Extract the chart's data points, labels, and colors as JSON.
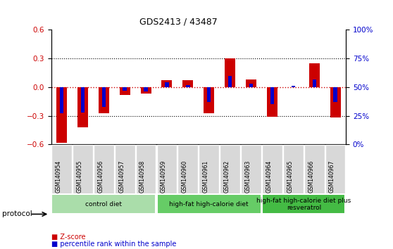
{
  "title": "GDS2413 / 43487",
  "samples": [
    "GSM140954",
    "GSM140955",
    "GSM140956",
    "GSM140957",
    "GSM140958",
    "GSM140959",
    "GSM140960",
    "GSM140961",
    "GSM140962",
    "GSM140963",
    "GSM140964",
    "GSM140965",
    "GSM140966",
    "GSM140967"
  ],
  "zscore": [
    -0.58,
    -0.42,
    -0.27,
    -0.08,
    -0.07,
    0.07,
    0.07,
    -0.27,
    0.3,
    0.08,
    -0.31,
    0.0,
    0.25,
    -0.32
  ],
  "percentile": [
    0.27,
    0.28,
    0.33,
    0.47,
    0.46,
    0.54,
    0.52,
    0.37,
    0.6,
    0.53,
    0.35,
    0.51,
    0.57,
    0.37
  ],
  "zscore_color": "#cc0000",
  "percentile_color": "#0000cc",
  "ylim_left": [
    -0.6,
    0.6
  ],
  "ylim_right": [
    0,
    100
  ],
  "yticks_left": [
    -0.6,
    -0.3,
    0.0,
    0.3,
    0.6
  ],
  "yticks_right": [
    0,
    25,
    50,
    75,
    100
  ],
  "ytick_labels_right": [
    "0%",
    "25%",
    "50%",
    "75%",
    "100%"
  ],
  "groups": [
    {
      "label": "control diet",
      "start": 0,
      "end": 4,
      "color": "#aaddaa"
    },
    {
      "label": "high-fat high-calorie diet",
      "start": 5,
      "end": 9,
      "color": "#66cc66"
    },
    {
      "label": "high-fat high-calorie diet plus\nresveratrol",
      "start": 10,
      "end": 13,
      "color": "#44bb44"
    }
  ],
  "group_row_label": "protocol",
  "legend_zscore": "Z-score",
  "legend_pct": "percentile rank within the sample",
  "bar_width": 0.5,
  "pct_bar_width": 0.18
}
